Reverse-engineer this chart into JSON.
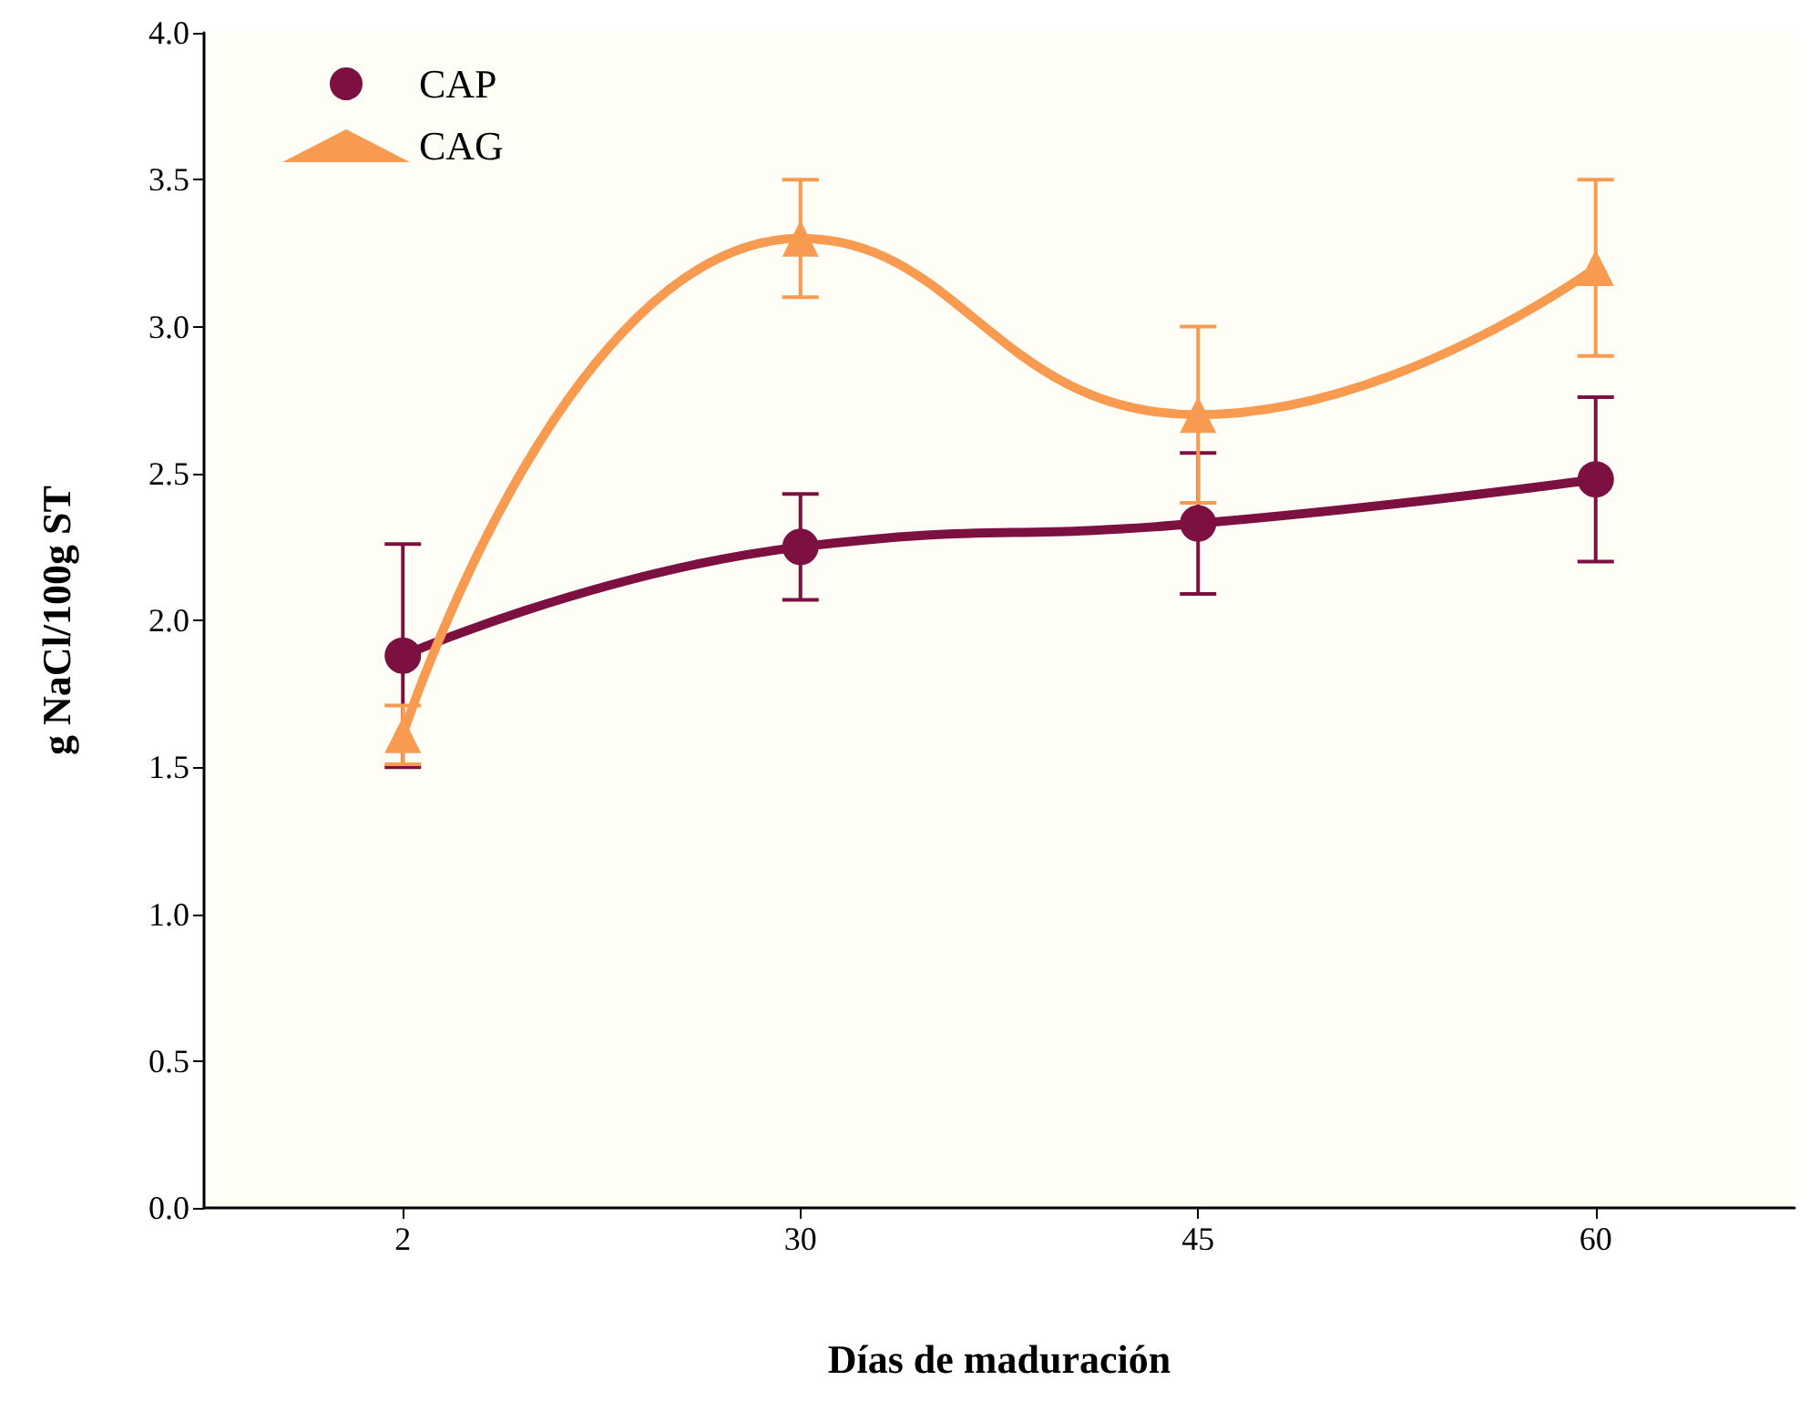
{
  "chart_data": {
    "type": "line",
    "xlabel": "Días de maduración",
    "ylabel": "g NaCl/100g ST",
    "categories": [
      "2",
      "30",
      "45",
      "60"
    ],
    "series": [
      {
        "name": "CAP",
        "color": "#7b1041",
        "marker": "circle",
        "values": [
          1.88,
          2.25,
          2.33,
          2.48
        ],
        "errors": [
          0.38,
          0.18,
          0.24,
          0.28
        ]
      },
      {
        "name": "CAG",
        "color": "#f89a4f",
        "marker": "triangle",
        "values": [
          1.61,
          3.3,
          2.7,
          3.2
        ],
        "errors": [
          0.1,
          0.2,
          0.3,
          0.3
        ]
      }
    ],
    "ylim": [
      0,
      4
    ],
    "yticks": [
      {
        "value": 0,
        "label": "0.0"
      },
      {
        "value": 0.5,
        "label": "0.5"
      },
      {
        "value": 1,
        "label": "1.0"
      },
      {
        "value": 1.5,
        "label": "1.5"
      },
      {
        "value": 2,
        "label": "2.0"
      },
      {
        "value": 2.5,
        "label": "2.5"
      },
      {
        "value": 3,
        "label": "3.0"
      },
      {
        "value": 3.5,
        "label": "3.5"
      },
      {
        "value": 4,
        "label": "4.0"
      }
    ],
    "legend": "top left",
    "grid": false,
    "line_style": "solid"
  }
}
